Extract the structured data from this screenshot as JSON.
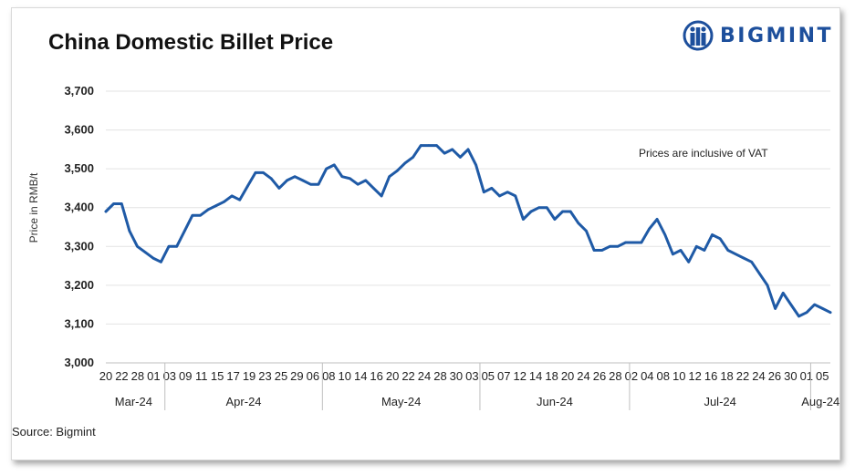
{
  "brand": {
    "name": "BIGMINT",
    "color": "#1d4f9c"
  },
  "footer": {
    "source": "Source: Bigmint"
  },
  "chart_data": {
    "type": "line",
    "title": "China Domestic Billet Price",
    "ylabel": "Price in RMB/t",
    "xlabel": "",
    "ylim": [
      3000,
      3700
    ],
    "yticks": [
      3000,
      3100,
      3200,
      3300,
      3400,
      3500,
      3600,
      3700
    ],
    "ytick_labels": [
      "3,000",
      "3,100",
      "3,200",
      "3,300",
      "3,400",
      "3,500",
      "3,600",
      "3,700"
    ],
    "grid": true,
    "line_color": "#1f5aa6",
    "annotation": "Prices are inclusive of VAT",
    "x": [
      "20",
      "21",
      "22",
      "25",
      "26",
      "27",
      "28",
      "29",
      "01",
      "04",
      "05",
      "06",
      "07",
      "08",
      "11",
      "12",
      "15",
      "16",
      "17",
      "18",
      "19",
      "22",
      "23",
      "24",
      "25",
      "26",
      "29",
      "30",
      "06",
      "07",
      "08",
      "09",
      "10",
      "13",
      "14",
      "15",
      "16",
      "17",
      "20",
      "21",
      "22",
      "23",
      "24",
      "27",
      "28",
      "29",
      "30",
      "31",
      "03",
      "04",
      "05",
      "06",
      "07",
      "11",
      "12",
      "13",
      "14",
      "17",
      "18",
      "19",
      "20",
      "21",
      "24",
      "25",
      "26",
      "27",
      "28",
      "01",
      "02",
      "03",
      "04",
      "05",
      "08",
      "09",
      "10",
      "11",
      "12",
      "15",
      "16",
      "17",
      "18",
      "19",
      "22",
      "23",
      "24",
      "25",
      "26",
      "29",
      "30",
      "31",
      "01",
      "02",
      "05"
    ],
    "x_tick_labels": [
      "20",
      "22",
      "28",
      "01",
      "03",
      "09",
      "11",
      "15",
      "17",
      "19",
      "23",
      "25",
      "29",
      "06",
      "08",
      "10",
      "14",
      "16",
      "20",
      "22",
      "24",
      "28",
      "30",
      "03",
      "05",
      "07",
      "12",
      "14",
      "18",
      "20",
      "24",
      "26",
      "28",
      "02",
      "04",
      "08",
      "10",
      "12",
      "16",
      "18",
      "22",
      "24",
      "26",
      "30",
      "01",
      "05"
    ],
    "months": [
      "Mar-24",
      "Apr-24",
      "May-24",
      "Jun-24",
      "Jul-24",
      "Aug-24"
    ],
    "month_spans": [
      [
        0,
        7
      ],
      [
        8,
        27
      ],
      [
        28,
        47
      ],
      [
        48,
        66
      ],
      [
        67,
        89
      ],
      [
        90,
        92
      ]
    ],
    "series": [
      {
        "values": [
          3390,
          3410,
          3410,
          3340,
          3300,
          3285,
          3270,
          3260,
          3300,
          3300,
          3340,
          3380,
          3380,
          3395,
          3405,
          3415,
          3430,
          3420,
          3455,
          3490,
          3490,
          3475,
          3450,
          3470,
          3480,
          3470,
          3460,
          3460,
          3500,
          3510,
          3480,
          3475,
          3460,
          3470,
          3450,
          3430,
          3480,
          3495,
          3515,
          3530,
          3560,
          3560,
          3560,
          3540,
          3550,
          3530,
          3550,
          3510,
          3440,
          3450,
          3430,
          3440,
          3430,
          3370,
          3390,
          3400,
          3400,
          3370,
          3390,
          3390,
          3360,
          3340,
          3290,
          3290,
          3300,
          3300,
          3310,
          3310,
          3310,
          3345,
          3370,
          3330,
          3280,
          3290,
          3260,
          3300,
          3290,
          3330,
          3320,
          3290,
          3280,
          3270,
          3260,
          3230,
          3200,
          3140,
          3180,
          3150,
          3120,
          3130,
          3150,
          3140,
          3130
        ]
      }
    ]
  }
}
